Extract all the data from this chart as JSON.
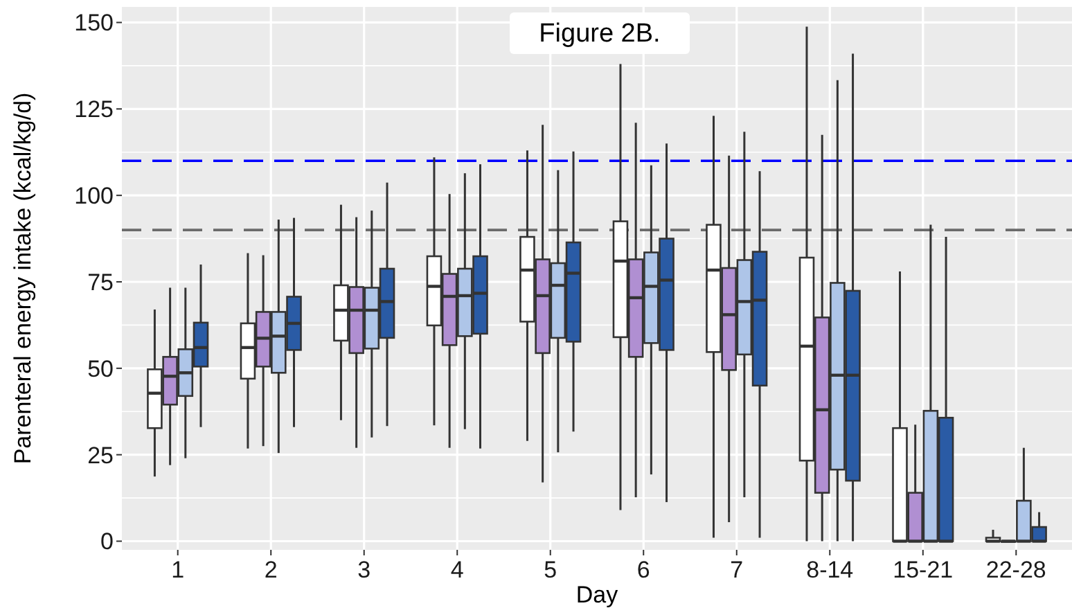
{
  "chart_data": {
    "type": "box",
    "title": "Figure 2B.",
    "xlabel": "Day",
    "ylabel": "Parenteral energy intake (kcal/kg/d)",
    "categories": [
      "1",
      "2",
      "3",
      "4",
      "5",
      "6",
      "7",
      "8-14",
      "15-21",
      "22-28"
    ],
    "ylim": [
      -2.5,
      154.5
    ],
    "yticks": [
      0,
      25,
      50,
      75,
      100,
      125,
      150
    ],
    "grid": true,
    "ref_lines": [
      {
        "axis": "y",
        "value": 110,
        "color": "#0000ff",
        "line_style": "dashed"
      },
      {
        "axis": "y",
        "value": 90,
        "color": "#6b6b6b",
        "line_style": "dashed"
      }
    ],
    "series": [
      {
        "color": "#ffffff",
        "boxes": [
          {
            "low": 18.7,
            "q1": 32.7,
            "median": 42.8,
            "q3": 49.7,
            "high": 67
          },
          {
            "low": 26.8,
            "q1": 47,
            "median": 56,
            "q3": 63,
            "high": 83.3
          },
          {
            "low": 35,
            "q1": 58,
            "median": 66.8,
            "q3": 74,
            "high": 97.3
          },
          {
            "low": 33.5,
            "q1": 62.4,
            "median": 73.7,
            "q3": 82.4,
            "high": 111
          },
          {
            "low": 29,
            "q1": 63.5,
            "median": 78.4,
            "q3": 88,
            "high": 113
          },
          {
            "low": 9,
            "q1": 59,
            "median": 81,
            "q3": 92.5,
            "high": 138
          },
          {
            "low": 1,
            "q1": 54.7,
            "median": 78.4,
            "q3": 91.5,
            "high": 123
          },
          {
            "low": 0,
            "q1": 23.3,
            "median": 56.4,
            "q3": 82,
            "high": 148.8
          },
          {
            "low": 0,
            "q1": 0,
            "median": 0,
            "q3": 32.7,
            "high": 78
          },
          {
            "low": 0,
            "q1": 0,
            "median": 0,
            "q3": 1,
            "high": 3.3
          }
        ]
      },
      {
        "color": "#b08fd2",
        "boxes": [
          {
            "low": 22,
            "q1": 39.5,
            "median": 47.7,
            "q3": 53.3,
            "high": 73.3
          },
          {
            "low": 27.5,
            "q1": 50.5,
            "median": 58.7,
            "q3": 66.3,
            "high": 82.7
          },
          {
            "low": 27,
            "q1": 54.4,
            "median": 66.8,
            "q3": 73.5,
            "high": 93.7
          },
          {
            "low": 27,
            "q1": 56.7,
            "median": 70.8,
            "q3": 77.3,
            "high": 100.4
          },
          {
            "low": 17,
            "q1": 54.4,
            "median": 71,
            "q3": 81.5,
            "high": 120.4
          },
          {
            "low": 12.7,
            "q1": 53.3,
            "median": 70.4,
            "q3": 81.5,
            "high": 121
          },
          {
            "low": 5.5,
            "q1": 49.5,
            "median": 65.5,
            "q3": 79,
            "high": 111.5
          },
          {
            "low": 0,
            "q1": 14,
            "median": 38,
            "q3": 64.7,
            "high": 117.5
          },
          {
            "low": 0,
            "q1": 0,
            "median": 0,
            "q3": 14,
            "high": 33.7
          },
          {
            "low": 0,
            "q1": 0,
            "median": 0,
            "q3": 0,
            "high": 0
          }
        ]
      },
      {
        "color": "#aec5e8",
        "boxes": [
          {
            "low": 24,
            "q1": 42,
            "median": 48.7,
            "q3": 55.5,
            "high": 73.3
          },
          {
            "low": 25.5,
            "q1": 48.7,
            "median": 59.3,
            "q3": 66.3,
            "high": 93
          },
          {
            "low": 30,
            "q1": 55.7,
            "median": 66.8,
            "q3": 73.3,
            "high": 95.6
          },
          {
            "low": 32.4,
            "q1": 59.3,
            "median": 71,
            "q3": 78.8,
            "high": 106.4
          },
          {
            "low": 25.7,
            "q1": 58.8,
            "median": 74,
            "q3": 80.4,
            "high": 107.3
          },
          {
            "low": 19.3,
            "q1": 57.3,
            "median": 73.7,
            "q3": 83.5,
            "high": 108.7
          },
          {
            "low": 12.7,
            "q1": 54,
            "median": 69.3,
            "q3": 81.3,
            "high": 118.4
          },
          {
            "low": 0,
            "q1": 20.7,
            "median": 48,
            "q3": 74.7,
            "high": 133.3
          },
          {
            "low": 0,
            "q1": 0,
            "median": 0,
            "q3": 37.7,
            "high": 91.5
          },
          {
            "low": 0,
            "q1": 0,
            "median": 0,
            "q3": 11.7,
            "high": 27
          }
        ]
      },
      {
        "color": "#2a5ba5",
        "boxes": [
          {
            "low": 33,
            "q1": 50.5,
            "median": 56,
            "q3": 63.2,
            "high": 80
          },
          {
            "low": 33,
            "q1": 55.3,
            "median": 63,
            "q3": 70.7,
            "high": 93.5
          },
          {
            "low": 33.3,
            "q1": 58.8,
            "median": 69.3,
            "q3": 78.8,
            "high": 103.7
          },
          {
            "low": 26.8,
            "q1": 60,
            "median": 71.7,
            "q3": 82.4,
            "high": 109
          },
          {
            "low": 31.7,
            "q1": 57.7,
            "median": 77.5,
            "q3": 86.4,
            "high": 112.7
          },
          {
            "low": 11.3,
            "q1": 55.3,
            "median": 75.5,
            "q3": 87.5,
            "high": 115
          },
          {
            "low": 1,
            "q1": 45,
            "median": 69.7,
            "q3": 83.7,
            "high": 107
          },
          {
            "low": 0,
            "q1": 17.5,
            "median": 48,
            "q3": 72.4,
            "high": 141
          },
          {
            "low": 0,
            "q1": 0,
            "median": 0,
            "q3": 35.7,
            "high": 88
          },
          {
            "low": 0,
            "q1": 0,
            "median": 0,
            "q3": 4.1,
            "high": 8.4
          }
        ]
      }
    ]
  }
}
